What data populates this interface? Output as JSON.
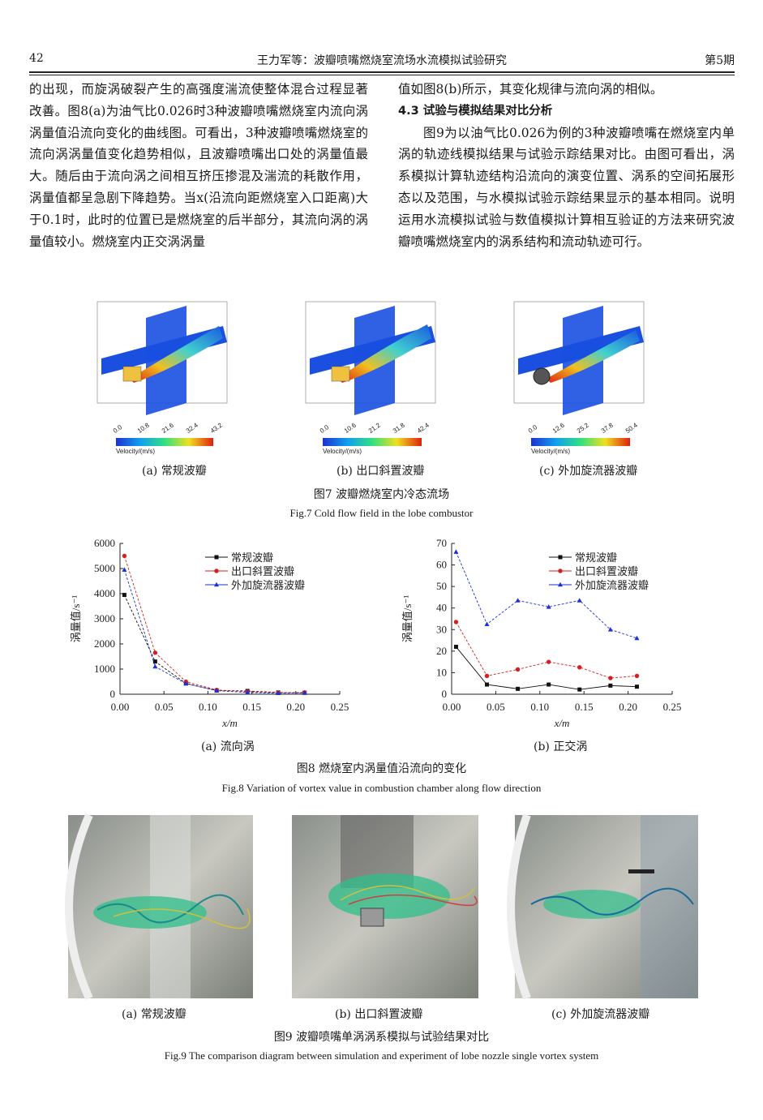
{
  "header": {
    "page_number": "42",
    "running_title": "王力军等：波瓣喷嘴燃烧室流场水流模拟试验研究",
    "issue": "第5期"
  },
  "left_column": {
    "text": "的出现，而旋涡破裂产生的高强度湍流使整体混合过程显著改善。图8(a)为油气比0.026时3种波瓣喷嘴燃烧室内流向涡涡量值沿流向变化的曲线图。可看出，3种波瓣喷嘴燃烧室的流向涡涡量值变化趋势相似，且波瓣喷嘴出口处的涡量值最大。随后由于流向涡之间相互挤压掺混及湍流的耗散作用，涡量值都呈急剧下降趋势。当x(沿流向距燃烧室入口距离)大于0.1时，此时的位置已是燃烧室的后半部分，其流向涡的涡量值较小。燃烧室内正交涡涡量"
  },
  "right_column": {
    "para1": "值如图8(b)所示，其变化规律与流向涡的相似。",
    "section_title": "4.3  试验与模拟结果对比分析",
    "para2": "图9为以油气比0.026为例的3种波瓣喷嘴在燃烧室内单涡的轨迹线模拟结果与试验示踪结果对比。由图可看出，涡系模拟计算轨迹结构沿流向的演变位置、涡系的空间拓展形态以及范围，与水模拟试验示踪结果显示的基本相同。说明运用水流模拟试验与数值模拟计算相互验证的方法来研究波瓣喷嘴燃烧室内的涡系结构和流动轨迹可行。"
  },
  "fig7": {
    "caption_cn": "图7  波瓣燃烧室内冷态流场",
    "caption_en": "Fig.7  Cold flow field in the lobe combustor",
    "panels": [
      {
        "label": "(a)  常规波瓣",
        "ticks": [
          "0.0",
          "10.8",
          "21.6",
          "32.4",
          "43.2"
        ],
        "unit": "Velocity/(m/s)"
      },
      {
        "label": "(b)  出口斜置波瓣",
        "ticks": [
          "0.0",
          "10.6",
          "21.2",
          "31.8",
          "42.4"
        ],
        "unit": "Velocity/(m/s)"
      },
      {
        "label": "(c)  外加旋流器波瓣",
        "ticks": [
          "0.0",
          "12.6",
          "25.2",
          "37.8",
          "50.4"
        ],
        "unit": "Velocity/(m/s)"
      }
    ]
  },
  "fig8": {
    "caption_cn": "图8  燃烧室内涡量值沿流向的变化",
    "caption_en": "Fig.8  Variation of vortex value in combustion chamber along flow direction",
    "sub_a": "(a)  流向涡",
    "sub_b": "(b)  正交涡"
  },
  "fig9": {
    "caption_cn": "图9  波瓣喷嘴单涡涡系模拟与试验结果对比",
    "caption_en": "Fig.9  The comparison diagram between simulation and experiment of lobe nozzle single vortex system",
    "labels": [
      "(a)  常规波瓣",
      "(b)  出口斜置波瓣",
      "(c)  外加旋流器波瓣"
    ]
  },
  "colors": {
    "s1": "#111111",
    "s2": "#d62020",
    "s3": "#1a2fd6"
  },
  "chart_data": [
    {
      "type": "line",
      "xlabel": "x/m",
      "ylabel": "涡量值/s⁻¹",
      "xlim": [
        0,
        0.25
      ],
      "ylim": [
        0,
        6000
      ],
      "xticks": [
        "0.00",
        "0.05",
        "0.10",
        "0.15",
        "0.20",
        "0.25"
      ],
      "yticks": [
        "0",
        "1000",
        "2000",
        "3000",
        "4000",
        "5000",
        "6000"
      ],
      "legend": "top-right",
      "series": [
        {
          "name": "常规波瓣",
          "x": [
            0.005,
            0.04,
            0.075,
            0.11,
            0.145,
            0.18,
            0.21
          ],
          "values": [
            3950,
            1300,
            430,
            150,
            130,
            70,
            60
          ]
        },
        {
          "name": "出口斜置波瓣",
          "x": [
            0.005,
            0.04,
            0.075,
            0.11,
            0.145,
            0.18,
            0.21
          ],
          "values": [
            5500,
            1650,
            500,
            170,
            100,
            60,
            70
          ]
        },
        {
          "name": "外加旋流器波瓣",
          "x": [
            0.005,
            0.04,
            0.075,
            0.11,
            0.145,
            0.18,
            0.21
          ],
          "values": [
            4950,
            1100,
            420,
            140,
            70,
            40,
            50
          ]
        }
      ]
    },
    {
      "type": "line",
      "xlabel": "x/m",
      "ylabel": "涡量值/s⁻¹",
      "xlim": [
        0,
        0.25
      ],
      "ylim": [
        0,
        70
      ],
      "xticks": [
        "0.00",
        "0.05",
        "0.10",
        "0.15",
        "0.20",
        "0.25"
      ],
      "yticks": [
        "0",
        "10",
        "20",
        "30",
        "40",
        "50",
        "60",
        "70"
      ],
      "legend": "top-right",
      "series": [
        {
          "name": "常规波瓣",
          "x": [
            0.005,
            0.04,
            0.075,
            0.11,
            0.145,
            0.18,
            0.21
          ],
          "values": [
            22,
            4.5,
            2.5,
            4.5,
            2.2,
            4,
            3.5
          ]
        },
        {
          "name": "出口斜置波瓣",
          "x": [
            0.005,
            0.04,
            0.075,
            0.11,
            0.145,
            0.18,
            0.21
          ],
          "values": [
            33.5,
            8.5,
            11.5,
            15,
            12.5,
            7.5,
            8.5
          ]
        },
        {
          "name": "外加旋流器波瓣",
          "x": [
            0.005,
            0.04,
            0.075,
            0.11,
            0.145,
            0.18,
            0.21
          ],
          "values": [
            66,
            32.5,
            43.5,
            40.5,
            43.5,
            30,
            26
          ]
        }
      ]
    }
  ]
}
